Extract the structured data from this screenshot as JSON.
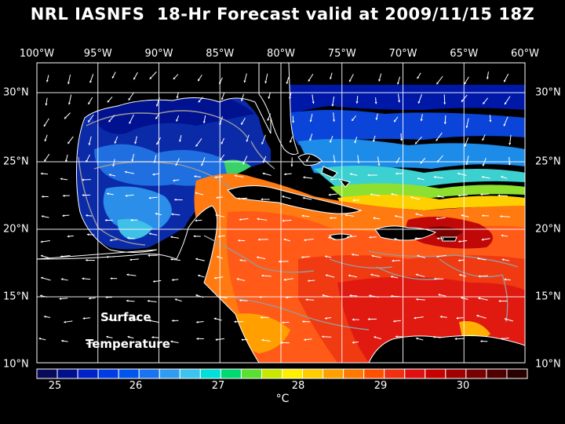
{
  "title": "NRL IASNFS  18-Hr Forecast valid at 2009/11/15 18Z",
  "map": {
    "lon_labels": [
      "100°W",
      "95°W",
      "90°W",
      "85°W",
      "80°W",
      "75°W",
      "70°W",
      "65°W",
      "60°W"
    ],
    "lat_labels": [
      "30°N",
      "25°N",
      "20°N",
      "15°N",
      "10°N"
    ],
    "overlay_label": [
      "Surface",
      "Temperature"
    ]
  },
  "colorbar": {
    "tick_labels": [
      "25",
      "26",
      "27",
      "28",
      "29",
      "30"
    ],
    "unit": "°C",
    "colors": [
      "#0a0a5a",
      "#000f8c",
      "#0022c8",
      "#003ce6",
      "#0055ee",
      "#1a73f0",
      "#2f9bf2",
      "#3cc4f0",
      "#00e0d8",
      "#00d870",
      "#5ae030",
      "#c8e800",
      "#fff000",
      "#ffcc00",
      "#ffa000",
      "#ff7800",
      "#ff5000",
      "#f03010",
      "#e01010",
      "#c80000",
      "#a00000",
      "#780000",
      "#500000",
      "#280000"
    ]
  }
}
